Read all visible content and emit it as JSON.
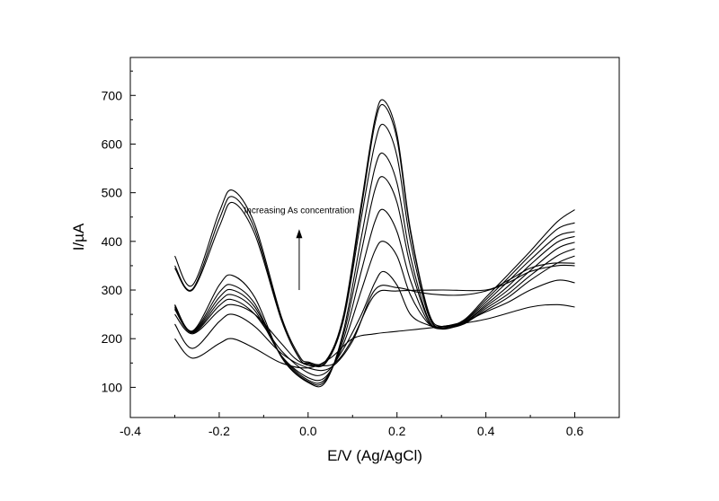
{
  "chart_data": {
    "type": "line",
    "title": "",
    "xlabel": "E/V (Ag/AgCl)",
    "ylabel": "I/µA",
    "xlim": [
      -0.4,
      0.7
    ],
    "ylim": [
      38,
      778
    ],
    "xticks": [
      -0.4,
      -0.2,
      0.0,
      0.2,
      0.4,
      0.6
    ],
    "xtick_labels": [
      "-0.4",
      "-0.2",
      "0.0",
      "0.2",
      "0.4",
      "0.6"
    ],
    "yticks": [
      100,
      200,
      300,
      400,
      500,
      600,
      700
    ],
    "ytick_labels": [
      "100",
      "200",
      "300",
      "400",
      "500",
      "600",
      "700"
    ],
    "grid": false,
    "legend": "none",
    "annotation": {
      "text": "Increasing As concentration",
      "arrow_from": [
        -0.02,
        300
      ],
      "arrow_to": [
        -0.02,
        425
      ]
    },
    "series": [
      {
        "values": [
          [
            -0.3,
            200
          ],
          [
            -0.26,
            160
          ],
          [
            -0.2,
            190
          ],
          [
            -0.17,
            200
          ],
          [
            -0.12,
            180
          ],
          [
            -0.06,
            150
          ],
          [
            0.0,
            140
          ],
          [
            0.05,
            160
          ],
          [
            0.1,
            200
          ],
          [
            0.15,
            210
          ],
          [
            0.2,
            215
          ],
          [
            0.3,
            225
          ],
          [
            0.4,
            240
          ],
          [
            0.5,
            265
          ],
          [
            0.56,
            270
          ],
          [
            0.6,
            265
          ]
        ]
      },
      {
        "values": [
          [
            -0.3,
            230
          ],
          [
            -0.26,
            180
          ],
          [
            -0.2,
            235
          ],
          [
            -0.17,
            250
          ],
          [
            -0.12,
            225
          ],
          [
            -0.06,
            170
          ],
          [
            0.0,
            140
          ],
          [
            0.05,
            140
          ],
          [
            0.1,
            195
          ],
          [
            0.15,
            300
          ],
          [
            0.2,
            305
          ],
          [
            0.25,
            295
          ],
          [
            0.3,
            290
          ],
          [
            0.35,
            290
          ],
          [
            0.4,
            298
          ],
          [
            0.45,
            315
          ],
          [
            0.5,
            338
          ],
          [
            0.56,
            350
          ],
          [
            0.6,
            350
          ]
        ]
      },
      {
        "values": [
          [
            -0.3,
            250
          ],
          [
            -0.26,
            210
          ],
          [
            -0.2,
            258
          ],
          [
            -0.17,
            270
          ],
          [
            -0.12,
            250
          ],
          [
            -0.06,
            190
          ],
          [
            -0.03,
            160
          ],
          [
            0.0,
            145
          ],
          [
            0.02,
            145
          ],
          [
            0.06,
            150
          ],
          [
            0.1,
            200
          ],
          [
            0.15,
            290
          ],
          [
            0.2,
            298
          ],
          [
            0.3,
            300
          ],
          [
            0.4,
            300
          ],
          [
            0.45,
            320
          ],
          [
            0.5,
            345
          ],
          [
            0.55,
            355
          ],
          [
            0.6,
            355
          ]
        ]
      },
      {
        "values": [
          [
            -0.3,
            260
          ],
          [
            -0.26,
            212
          ],
          [
            -0.2,
            268
          ],
          [
            -0.17,
            280
          ],
          [
            -0.12,
            250
          ],
          [
            -0.06,
            175
          ],
          [
            0.0,
            130
          ],
          [
            0.04,
            130
          ],
          [
            0.08,
            180
          ],
          [
            0.12,
            250
          ],
          [
            0.15,
            315
          ],
          [
            0.17,
            338
          ],
          [
            0.2,
            310
          ],
          [
            0.23,
            250
          ],
          [
            0.27,
            228
          ],
          [
            0.3,
            225
          ],
          [
            0.35,
            235
          ],
          [
            0.4,
            255
          ],
          [
            0.45,
            275
          ],
          [
            0.5,
            300
          ],
          [
            0.56,
            320
          ],
          [
            0.6,
            315
          ]
        ]
      },
      {
        "values": [
          [
            -0.3,
            262
          ],
          [
            -0.26,
            213
          ],
          [
            -0.2,
            276
          ],
          [
            -0.17,
            290
          ],
          [
            -0.12,
            258
          ],
          [
            -0.06,
            165
          ],
          [
            0.0,
            120
          ],
          [
            0.04,
            122
          ],
          [
            0.08,
            190
          ],
          [
            0.12,
            300
          ],
          [
            0.15,
            380
          ],
          [
            0.17,
            400
          ],
          [
            0.2,
            370
          ],
          [
            0.23,
            290
          ],
          [
            0.27,
            232
          ],
          [
            0.3,
            225
          ],
          [
            0.35,
            232
          ],
          [
            0.4,
            258
          ],
          [
            0.45,
            285
          ],
          [
            0.5,
            320
          ],
          [
            0.56,
            355
          ],
          [
            0.6,
            370
          ]
        ]
      },
      {
        "values": [
          [
            -0.3,
            265
          ],
          [
            -0.26,
            214
          ],
          [
            -0.2,
            285
          ],
          [
            -0.17,
            300
          ],
          [
            -0.12,
            265
          ],
          [
            -0.06,
            165
          ],
          [
            0.0,
            115
          ],
          [
            0.04,
            118
          ],
          [
            0.08,
            200
          ],
          [
            0.12,
            340
          ],
          [
            0.15,
            440
          ],
          [
            0.17,
            465
          ],
          [
            0.2,
            420
          ],
          [
            0.23,
            320
          ],
          [
            0.27,
            235
          ],
          [
            0.3,
            222
          ],
          [
            0.35,
            230
          ],
          [
            0.4,
            262
          ],
          [
            0.45,
            292
          ],
          [
            0.5,
            330
          ],
          [
            0.56,
            370
          ],
          [
            0.6,
            385
          ]
        ]
      },
      {
        "values": [
          [
            -0.3,
            268
          ],
          [
            -0.26,
            215
          ],
          [
            -0.2,
            295
          ],
          [
            -0.17,
            310
          ],
          [
            -0.12,
            272
          ],
          [
            -0.06,
            163
          ],
          [
            0.0,
            112
          ],
          [
            0.04,
            115
          ],
          [
            0.08,
            210
          ],
          [
            0.12,
            380
          ],
          [
            0.15,
            505
          ],
          [
            0.17,
            532
          ],
          [
            0.2,
            480
          ],
          [
            0.23,
            350
          ],
          [
            0.27,
            240
          ],
          [
            0.3,
            222
          ],
          [
            0.35,
            232
          ],
          [
            0.4,
            266
          ],
          [
            0.45,
            300
          ],
          [
            0.5,
            340
          ],
          [
            0.56,
            385
          ],
          [
            0.6,
            398
          ]
        ]
      },
      {
        "values": [
          [
            -0.3,
            270
          ],
          [
            -0.26,
            216
          ],
          [
            -0.2,
            310
          ],
          [
            -0.17,
            330
          ],
          [
            -0.12,
            285
          ],
          [
            -0.06,
            162
          ],
          [
            0.0,
            110
          ],
          [
            0.04,
            112
          ],
          [
            0.08,
            218
          ],
          [
            0.12,
            410
          ],
          [
            0.15,
            550
          ],
          [
            0.17,
            580
          ],
          [
            0.2,
            520
          ],
          [
            0.23,
            370
          ],
          [
            0.27,
            242
          ],
          [
            0.3,
            220
          ],
          [
            0.35,
            233
          ],
          [
            0.4,
            270
          ],
          [
            0.45,
            308
          ],
          [
            0.5,
            352
          ],
          [
            0.56,
            398
          ],
          [
            0.6,
            410
          ]
        ]
      },
      {
        "values": [
          [
            -0.3,
            345
          ],
          [
            -0.26,
            300
          ],
          [
            -0.2,
            430
          ],
          [
            -0.17,
            480
          ],
          [
            -0.12,
            415
          ],
          [
            -0.06,
            238
          ],
          [
            -0.02,
            160
          ],
          [
            0.0,
            148
          ],
          [
            0.04,
            150
          ],
          [
            0.08,
            240
          ],
          [
            0.12,
            450
          ],
          [
            0.15,
            600
          ],
          [
            0.17,
            640
          ],
          [
            0.2,
            575
          ],
          [
            0.23,
            400
          ],
          [
            0.27,
            250
          ],
          [
            0.3,
            222
          ],
          [
            0.35,
            235
          ],
          [
            0.4,
            275
          ],
          [
            0.45,
            318
          ],
          [
            0.5,
            362
          ],
          [
            0.56,
            410
          ],
          [
            0.6,
            420
          ]
        ]
      },
      {
        "values": [
          [
            -0.3,
            350
          ],
          [
            -0.26,
            302
          ],
          [
            -0.2,
            445
          ],
          [
            -0.17,
            492
          ],
          [
            -0.12,
            425
          ],
          [
            -0.06,
            240
          ],
          [
            -0.02,
            160
          ],
          [
            0.0,
            150
          ],
          [
            0.04,
            152
          ],
          [
            0.08,
            245
          ],
          [
            0.12,
            470
          ],
          [
            0.15,
            640
          ],
          [
            0.17,
            680
          ],
          [
            0.2,
            610
          ],
          [
            0.23,
            420
          ],
          [
            0.27,
            255
          ],
          [
            0.3,
            222
          ],
          [
            0.35,
            236
          ],
          [
            0.4,
            280
          ],
          [
            0.45,
            325
          ],
          [
            0.5,
            372
          ],
          [
            0.56,
            425
          ],
          [
            0.6,
            438
          ]
        ]
      },
      {
        "values": [
          [
            -0.3,
            370
          ],
          [
            -0.26,
            310
          ],
          [
            -0.2,
            460
          ],
          [
            -0.17,
            505
          ],
          [
            -0.12,
            435
          ],
          [
            -0.06,
            245
          ],
          [
            -0.02,
            165
          ],
          [
            0.0,
            152
          ],
          [
            0.04,
            155
          ],
          [
            0.08,
            250
          ],
          [
            0.12,
            480
          ],
          [
            0.15,
            650
          ],
          [
            0.17,
            690
          ],
          [
            0.2,
            620
          ],
          [
            0.23,
            425
          ],
          [
            0.27,
            258
          ],
          [
            0.3,
            225
          ],
          [
            0.35,
            238
          ],
          [
            0.4,
            285
          ],
          [
            0.45,
            332
          ],
          [
            0.5,
            380
          ],
          [
            0.56,
            440
          ],
          [
            0.6,
            465
          ]
        ]
      }
    ]
  }
}
